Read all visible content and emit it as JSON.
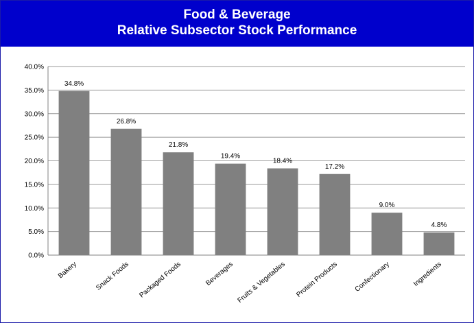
{
  "header": {
    "title_line1": "Food & Beverage",
    "title_line2": "Relative Subsector Stock Performance"
  },
  "colors": {
    "header_bg": "#0000cc",
    "bar": "#808080",
    "grid": "#999999"
  },
  "chart_data": {
    "type": "bar",
    "title": "Food & Beverage Relative Subsector Stock Performance",
    "xlabel": "",
    "ylabel": "",
    "categories": [
      "Bakery",
      "Snack Foods",
      "Packaged Foods",
      "Beverages",
      "Fruits & Vegetables",
      "Protein Products",
      "Confectionary",
      "Ingredients"
    ],
    "values": [
      34.8,
      26.8,
      21.8,
      19.4,
      18.4,
      17.2,
      9.0,
      4.8
    ],
    "data_labels": [
      "34.8%",
      "26.8%",
      "21.8%",
      "19.4%",
      "18.4%",
      "17.2%",
      "9.0%",
      "4.8%"
    ],
    "ylim": [
      0,
      40
    ],
    "yticks": [
      0,
      5,
      10,
      15,
      20,
      25,
      30,
      35,
      40
    ],
    "ytick_labels": [
      "0.0%",
      "5.0%",
      "10.0%",
      "15.0%",
      "20.0%",
      "25.0%",
      "30.0%",
      "35.0%",
      "40.0%"
    ],
    "grid": true,
    "legend": "none"
  }
}
